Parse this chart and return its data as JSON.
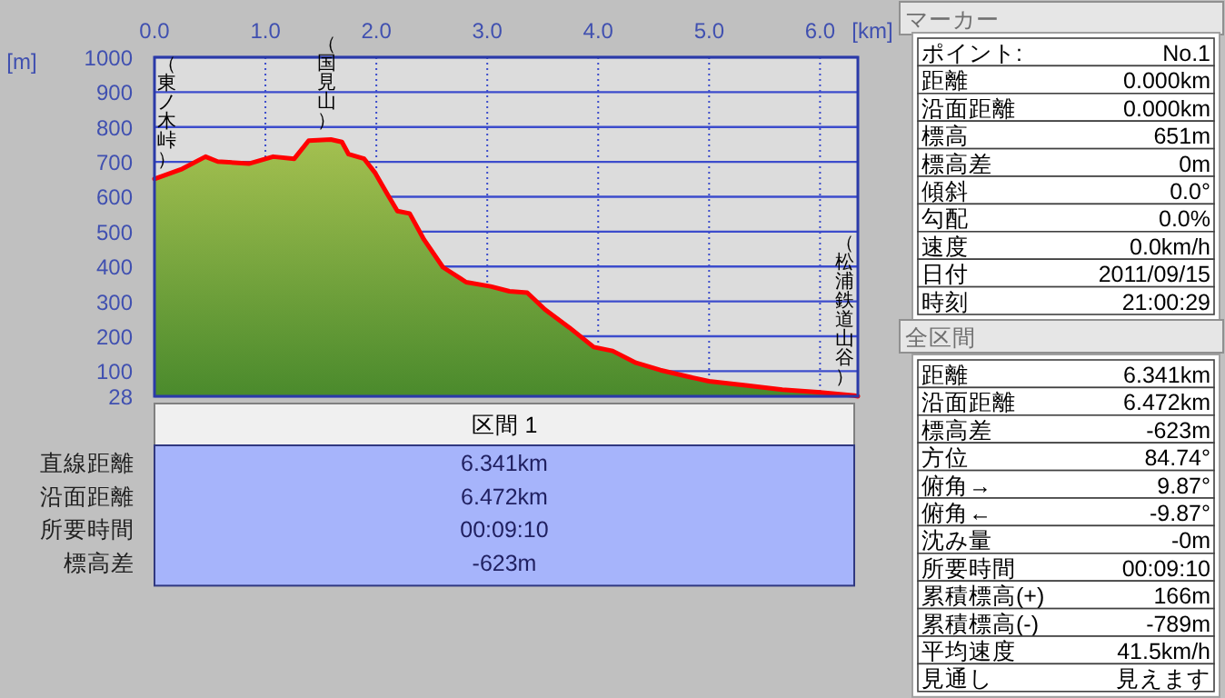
{
  "chart_data": [
    {
      "type": "area",
      "xlabel": "[km]",
      "ylabel": "[m]",
      "color": "#ff0000",
      "x": [
        0,
        0.25,
        0.46,
        0.57,
        0.85,
        1.07,
        1.26,
        1.39,
        1.59,
        1.69,
        1.75,
        1.89,
        1.99,
        2.1,
        2.19,
        2.3,
        2.43,
        2.6,
        2.81,
        3.03,
        3.2,
        3.36,
        3.52,
        3.74,
        3.96,
        4.13,
        4.34,
        4.56,
        4.84,
        5.0,
        5.33,
        5.66,
        5.98,
        6.31,
        6.341
      ],
      "values": [
        651,
        680,
        715,
        701,
        695,
        715,
        709,
        761,
        764,
        757,
        722,
        709,
        668,
        607,
        559,
        552,
        477,
        398,
        355,
        343,
        329,
        325,
        277,
        225,
        169,
        158,
        124,
        103,
        82,
        71,
        59,
        47,
        40,
        30,
        28
      ],
      "xlim": [
        0,
        6.341
      ],
      "ylim": [
        28,
        1000
      ],
      "xticks": [
        {
          "value": 0,
          "label": "0.0"
        },
        {
          "value": 1,
          "label": "1.0"
        },
        {
          "value": 2,
          "label": "2.0"
        },
        {
          "value": 3,
          "label": "3.0"
        },
        {
          "value": 4,
          "label": "4.0"
        },
        {
          "value": 5,
          "label": "5.0"
        },
        {
          "value": 6,
          "label": "6.0"
        }
      ],
      "yticks": [
        28,
        100,
        200,
        300,
        400,
        500,
        600,
        700,
        800,
        900,
        1000
      ],
      "grid": true,
      "annotations": [
        {
          "text": "（東ノ木峠）",
          "x": 0,
          "y": 651
        },
        {
          "text": "（国見山）",
          "x": 1.56,
          "y": 764
        },
        {
          "text": "（松浦鉄道山谷）",
          "x": 6.341,
          "y": 28
        }
      ]
    },
    {
      "type": "other",
      "title": "マーカー",
      "annotations": [
        "ポイント:",
        "No.1",
        "距離",
        "0.000km",
        "沿面距離",
        "0.000km",
        "標高",
        "651m",
        "標高差",
        "0m",
        "傾斜",
        "0.0°",
        "勾配",
        "0.0%",
        "速度",
        "0.0km/h",
        "日付",
        "2011/09/15",
        "時刻",
        "21:00:29"
      ]
    },
    {
      "type": "other",
      "title": "全区間",
      "annotations": [
        "距離",
        "6.341km",
        "沿面距離",
        "6.472km",
        "標高差",
        "-623m",
        "方位",
        "84.74°",
        "俯角→",
        "9.87°",
        "俯角←",
        "-9.87°",
        "沈み量",
        "-0m",
        "所要時間",
        "00:09:10",
        "累積標高(+)",
        "166m",
        "累積標高(-)",
        "-789m",
        "平均速度",
        "41.5km/h",
        "見通し",
        "見えます"
      ]
    },
    {
      "type": "other",
      "title": "区間 1",
      "annotations": [
        "直線距離",
        "6.341km",
        "沿面距離",
        "6.472km",
        "所要時間",
        "00:09:10",
        "標高差",
        "-623m"
      ]
    }
  ]
}
